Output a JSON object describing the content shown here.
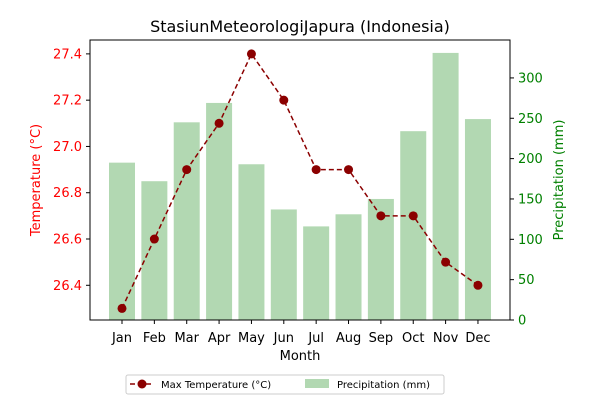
{
  "chart_data": {
    "type": "bar+line",
    "title": "StasiunMeteorologiJapura (Indonesia)",
    "xlabel": "Month",
    "ylabel_left": "Temperature (°C)",
    "ylabel_right": "Precipitation (mm)",
    "categories": [
      "Jan",
      "Feb",
      "Mar",
      "Apr",
      "May",
      "Jun",
      "Jul",
      "Aug",
      "Sep",
      "Oct",
      "Nov",
      "Dec"
    ],
    "series": [
      {
        "name": "Max Temperature (°C)",
        "type": "line",
        "axis": "left",
        "color": "#8b0000",
        "values": [
          26.3,
          26.6,
          26.9,
          27.1,
          27.4,
          27.2,
          26.9,
          26.9,
          26.7,
          26.7,
          26.5,
          26.4
        ]
      },
      {
        "name": "Precipitation (mm)",
        "type": "bar",
        "axis": "right",
        "color": "#b2d8b2",
        "values": [
          195,
          172,
          245,
          269,
          193,
          137,
          116,
          131,
          150,
          234,
          331,
          249
        ]
      }
    ],
    "ylim_left": [
      26.25,
      27.46
    ],
    "ylim_right": [
      0,
      347
    ],
    "yticks_left": [
      "26.4",
      "26.6",
      "26.8",
      "27.0",
      "27.2",
      "27.4"
    ],
    "yticks_right": [
      "0",
      "50",
      "100",
      "150",
      "200",
      "250",
      "300"
    ],
    "left_axis_color": "#ff0000",
    "right_axis_color": "#008000",
    "legend_position": "bottom-center",
    "grid": false
  }
}
